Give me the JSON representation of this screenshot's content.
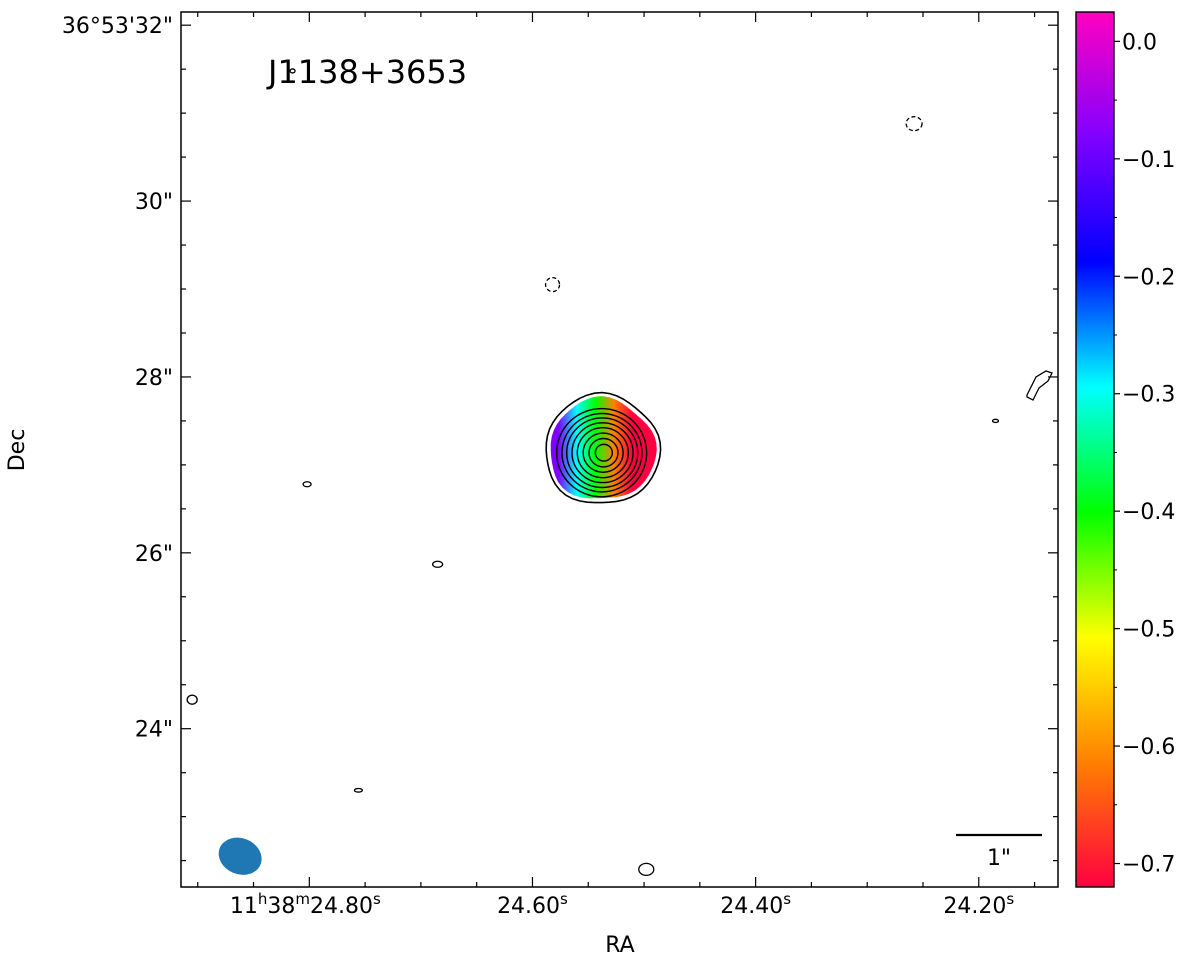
{
  "chart_data": {
    "type": "heatmap",
    "title": "J1138+3653",
    "xlabel": "RA",
    "ylabel": "Dec",
    "x_ticks": [
      {
        "label": "11h38m24.80s",
        "main": "11",
        "h": "h",
        "mid": "38",
        "m": "m",
        "sec": "24.80",
        "s": "s",
        "ra_s": 24.8
      },
      {
        "label": "24.60s",
        "sec": "24.60",
        "s": "s",
        "ra_s": 24.6
      },
      {
        "label": "24.40s",
        "sec": "24.40",
        "s": "s",
        "ra_s": 24.4
      },
      {
        "label": "24.20s",
        "sec": "24.20",
        "s": "s",
        "ra_s": 24.2
      }
    ],
    "y_ticks": [
      {
        "label": "36°53'32\"",
        "dec_arcsec": 32
      },
      {
        "label": "30\"",
        "dec_arcsec": 30
      },
      {
        "label": "28\"",
        "dec_arcsec": 28
      },
      {
        "label": "26\"",
        "dec_arcsec": 26
      },
      {
        "label": "24\"",
        "dec_arcsec": 24
      }
    ],
    "ra_range_s": [
      24.915,
      24.129
    ],
    "dec_range_arcsec": [
      22.2,
      32.15
    ],
    "colorbar": {
      "range": [
        -0.72,
        0.025
      ],
      "ticks": [
        {
          "label": "0.0",
          "value": 0.0
        },
        {
          "label": "−0.1",
          "value": -0.1
        },
        {
          "label": "−0.2",
          "value": -0.2
        },
        {
          "label": "−0.3",
          "value": -0.3
        },
        {
          "label": "−0.4",
          "value": -0.4
        },
        {
          "label": "−0.5",
          "value": -0.5
        },
        {
          "label": "−0.6",
          "value": -0.6
        },
        {
          "label": "−0.7",
          "value": -0.7
        }
      ],
      "colors": [
        "#ff0040",
        "#ff8000",
        "#ffff00",
        "#00ff00",
        "#00ffff",
        "#0000ff",
        "#8000ff",
        "#ff00c0"
      ]
    },
    "source": {
      "ra_s": 24.538,
      "dec_arcsec": 27.15,
      "index_left": -0.05,
      "index_right": -0.65,
      "index_center": -0.7
    },
    "contour_levels": 9,
    "beam": {
      "ra_s": 24.862,
      "dec_arcsec": 22.55,
      "color": "#1f77b4"
    },
    "scale_bar": {
      "label": "1\"",
      "length_arcsec": 1
    }
  }
}
